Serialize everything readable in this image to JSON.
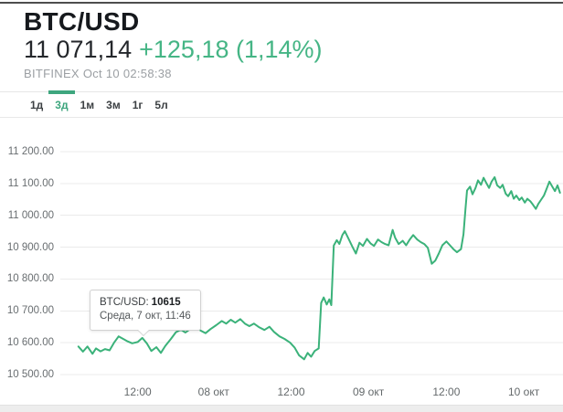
{
  "header": {
    "symbol": "BTC/USD",
    "price": "11 071,14",
    "change": "+125,18 (1,14%)",
    "source_line": "BITFINEX Oct 10 02:58:38"
  },
  "tabs": {
    "items": [
      {
        "label": "1д",
        "active": false
      },
      {
        "label": "3д",
        "active": true
      },
      {
        "label": "1м",
        "active": false
      },
      {
        "label": "3м",
        "active": false
      },
      {
        "label": "1г",
        "active": false
      },
      {
        "label": "5л",
        "active": false
      }
    ]
  },
  "tooltip": {
    "symbol_label": "BTC/USD:",
    "value": "10615",
    "date": "Среда, 7 окт, 11:46"
  },
  "colors": {
    "accent_green": "#45b585",
    "tab_green": "#3ea67e",
    "line_green": "#3bb27a",
    "grid": "#ebebeb",
    "text_dark": "#24272b",
    "text_gray": "#9b9fa3"
  },
  "chart_data": {
    "type": "line",
    "title": "BTC/USD price, 3-day range, BITFINEX",
    "ylabel": "",
    "xlabel": "",
    "grid": true,
    "legend": false,
    "line_color": "#3bb27a",
    "ylim": [
      10500,
      11200
    ],
    "yticks": [
      {
        "value": 10500,
        "label": "10 500.00"
      },
      {
        "value": 10600,
        "label": "10 600.00"
      },
      {
        "value": 10700,
        "label": "10 700.00"
      },
      {
        "value": 10800,
        "label": "10 800.00"
      },
      {
        "value": 10900,
        "label": "10 900.00"
      },
      {
        "value": 11000,
        "label": "11 000.00"
      },
      {
        "value": 11100,
        "label": "11 100.00"
      },
      {
        "value": 11200,
        "label": "11 200.00"
      }
    ],
    "xticks": [
      {
        "label": "12:00",
        "pos": 0.154
      },
      {
        "label": "08 окт",
        "pos": 0.305
      },
      {
        "label": "12:00",
        "pos": 0.459
      },
      {
        "label": "09 окт",
        "pos": 0.613
      },
      {
        "label": "12:00",
        "pos": 0.768
      },
      {
        "label": "10 окт",
        "pos": 0.922
      }
    ],
    "marker": {
      "pos": 0.163,
      "value": 10615,
      "label": "Среда, 7 окт, 11:46"
    },
    "points": [
      [
        0.036,
        10588
      ],
      [
        0.045,
        10572
      ],
      [
        0.054,
        10588
      ],
      [
        0.064,
        10565
      ],
      [
        0.071,
        10582
      ],
      [
        0.08,
        10573
      ],
      [
        0.089,
        10580
      ],
      [
        0.098,
        10576
      ],
      [
        0.107,
        10600
      ],
      [
        0.116,
        10620
      ],
      [
        0.125,
        10612
      ],
      [
        0.134,
        10604
      ],
      [
        0.143,
        10598
      ],
      [
        0.154,
        10602
      ],
      [
        0.163,
        10615
      ],
      [
        0.172,
        10598
      ],
      [
        0.181,
        10574
      ],
      [
        0.191,
        10586
      ],
      [
        0.2,
        10568
      ],
      [
        0.209,
        10590
      ],
      [
        0.22,
        10612
      ],
      [
        0.23,
        10633
      ],
      [
        0.24,
        10641
      ],
      [
        0.249,
        10632
      ],
      [
        0.26,
        10645
      ],
      [
        0.27,
        10650
      ],
      [
        0.279,
        10638
      ],
      [
        0.289,
        10630
      ],
      [
        0.299,
        10643
      ],
      [
        0.31,
        10655
      ],
      [
        0.321,
        10668
      ],
      [
        0.33,
        10660
      ],
      [
        0.339,
        10672
      ],
      [
        0.348,
        10663
      ],
      [
        0.358,
        10674
      ],
      [
        0.367,
        10660
      ],
      [
        0.376,
        10652
      ],
      [
        0.385,
        10660
      ],
      [
        0.396,
        10648
      ],
      [
        0.406,
        10640
      ],
      [
        0.416,
        10650
      ],
      [
        0.425,
        10634
      ],
      [
        0.436,
        10620
      ],
      [
        0.446,
        10612
      ],
      [
        0.457,
        10600
      ],
      [
        0.466,
        10585
      ],
      [
        0.475,
        10560
      ],
      [
        0.485,
        10548
      ],
      [
        0.492,
        10568
      ],
      [
        0.499,
        10556
      ],
      [
        0.506,
        10574
      ],
      [
        0.514,
        10582
      ],
      [
        0.519,
        10725
      ],
      [
        0.524,
        10742
      ],
      [
        0.53,
        10720
      ],
      [
        0.535,
        10736
      ],
      [
        0.539,
        10718
      ],
      [
        0.544,
        10905
      ],
      [
        0.55,
        10922
      ],
      [
        0.555,
        10910
      ],
      [
        0.561,
        10938
      ],
      [
        0.566,
        10950
      ],
      [
        0.573,
        10928
      ],
      [
        0.581,
        10902
      ],
      [
        0.588,
        10880
      ],
      [
        0.595,
        10914
      ],
      [
        0.602,
        10904
      ],
      [
        0.61,
        10926
      ],
      [
        0.617,
        10912
      ],
      [
        0.624,
        10904
      ],
      [
        0.632,
        10924
      ],
      [
        0.639,
        10916
      ],
      [
        0.646,
        10910
      ],
      [
        0.653,
        10906
      ],
      [
        0.661,
        10954
      ],
      [
        0.666,
        10930
      ],
      [
        0.673,
        10910
      ],
      [
        0.681,
        10920
      ],
      [
        0.688,
        10906
      ],
      [
        0.695,
        10924
      ],
      [
        0.702,
        10938
      ],
      [
        0.71,
        10924
      ],
      [
        0.717,
        10916
      ],
      [
        0.724,
        10910
      ],
      [
        0.731,
        10898
      ],
      [
        0.739,
        10848
      ],
      [
        0.746,
        10858
      ],
      [
        0.753,
        10880
      ],
      [
        0.76,
        10906
      ],
      [
        0.768,
        10918
      ],
      [
        0.775,
        10906
      ],
      [
        0.782,
        10894
      ],
      [
        0.789,
        10884
      ],
      [
        0.797,
        10894
      ],
      [
        0.802,
        10940
      ],
      [
        0.806,
        11020
      ],
      [
        0.809,
        11078
      ],
      [
        0.815,
        11090
      ],
      [
        0.82,
        11066
      ],
      [
        0.826,
        11086
      ],
      [
        0.831,
        11110
      ],
      [
        0.837,
        11096
      ],
      [
        0.842,
        11118
      ],
      [
        0.848,
        11100
      ],
      [
        0.853,
        11086
      ],
      [
        0.858,
        11106
      ],
      [
        0.864,
        11120
      ],
      [
        0.869,
        11094
      ],
      [
        0.875,
        11086
      ],
      [
        0.88,
        11096
      ],
      [
        0.886,
        11068
      ],
      [
        0.891,
        11060
      ],
      [
        0.897,
        11076
      ],
      [
        0.902,
        11052
      ],
      [
        0.907,
        11062
      ],
      [
        0.913,
        11048
      ],
      [
        0.918,
        11056
      ],
      [
        0.924,
        11040
      ],
      [
        0.929,
        11052
      ],
      [
        0.935,
        11044
      ],
      [
        0.94,
        11034
      ],
      [
        0.946,
        11020
      ],
      [
        0.951,
        11036
      ],
      [
        0.956,
        11048
      ],
      [
        0.962,
        11062
      ],
      [
        0.967,
        11082
      ],
      [
        0.973,
        11106
      ],
      [
        0.978,
        11092
      ],
      [
        0.984,
        11076
      ],
      [
        0.989,
        11094
      ],
      [
        0.994,
        11071
      ]
    ]
  }
}
